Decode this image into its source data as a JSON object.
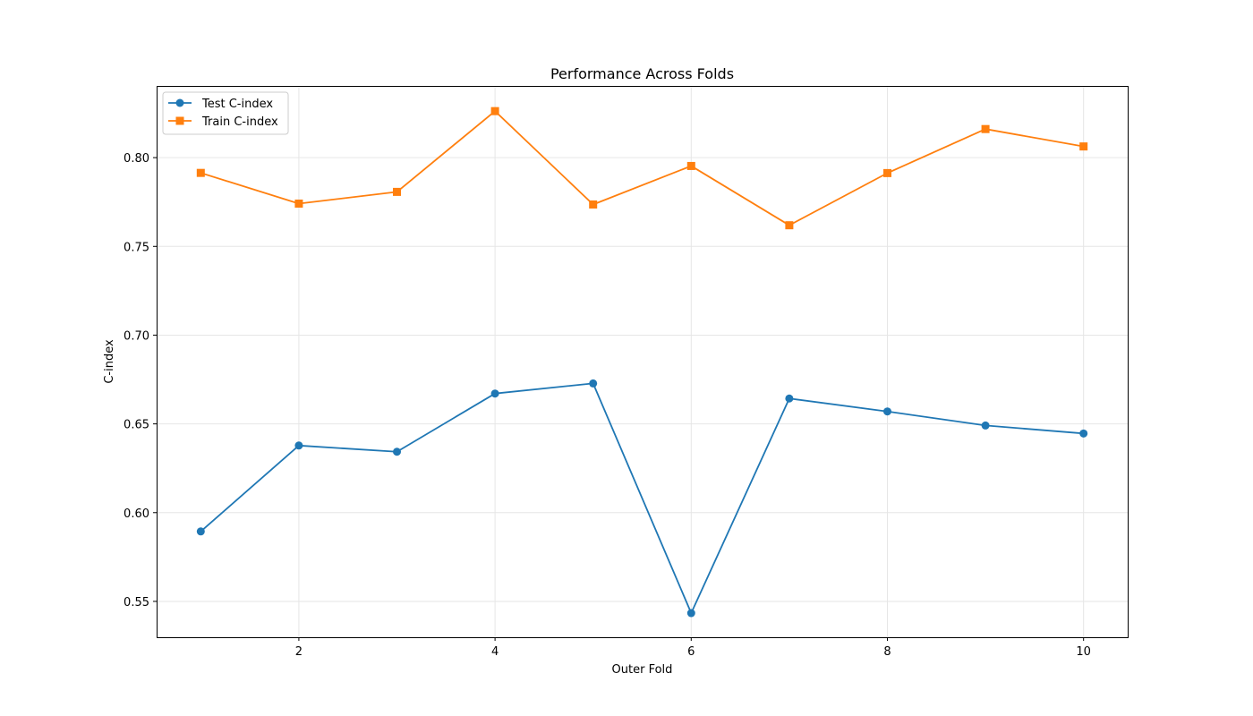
{
  "chart_data": {
    "type": "line",
    "title": "Performance Across Folds",
    "xlabel": "Outer Fold",
    "ylabel": "C-index",
    "x": [
      1,
      2,
      3,
      4,
      5,
      6,
      7,
      8,
      9,
      10
    ],
    "xlim": [
      0.55,
      10.45
    ],
    "ylim": [
      0.5298,
      0.8404
    ],
    "xticks": [
      2,
      4,
      6,
      8,
      10
    ],
    "yticks": [
      0.55,
      0.6,
      0.65,
      0.7,
      0.75,
      0.8
    ],
    "ytick_labels": [
      "0.55",
      "0.60",
      "0.65",
      "0.70",
      "0.75",
      "0.80"
    ],
    "xtick_labels": [
      "2",
      "4",
      "6",
      "8",
      "10"
    ],
    "grid": true,
    "legend_position": "upper left",
    "series": [
      {
        "name": "Test C-index",
        "color": "#1f77b4",
        "marker": "circle",
        "values": [
          0.5894,
          0.6378,
          0.6343,
          0.6671,
          0.6728,
          0.5434,
          0.6643,
          0.657,
          0.6491,
          0.6446
        ]
      },
      {
        "name": "Train C-index",
        "color": "#ff7f0e",
        "marker": "square",
        "values": [
          0.7914,
          0.7741,
          0.7807,
          0.8262,
          0.7736,
          0.7953,
          0.7619,
          0.7913,
          0.8161,
          0.8063
        ]
      }
    ]
  }
}
